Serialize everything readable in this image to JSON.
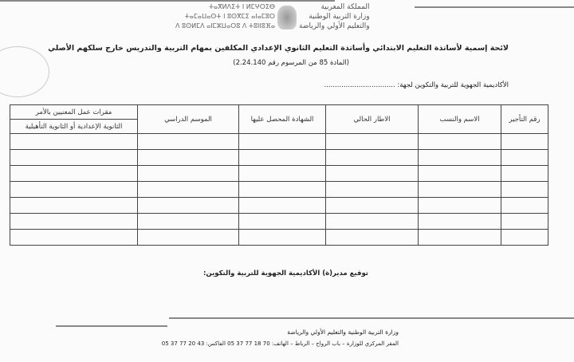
{
  "letterhead": {
    "kingdom_ar": "المملكة المغربية",
    "ministry_ar": "وزارة التربية الوطنية",
    "ministry_ar_2": "والتعليم الأولي والرياضة",
    "kingdom_tf": "ⵜⴰⴳⵍⴷⵉⵜ ⵏ ⵍⵎⵖⵔⵉⴱ",
    "ministry_tf": "ⵜⴰⵎⴰⵡⴰⵙⵜ ⵏ ⵓⵙⴳⵎⵉ ⴰⵏⴰⵎⵓⵔ",
    "ministry_tf_2": "ⴷ ⵓⵙⵍⵎⴷ ⴰⵏⵎⵣⵡⴰⵔⵓ ⴷ ⵜⵓⵏⵏⵓⴼⴰ"
  },
  "title": "لائحة إسمية لأساتذة التعليم الابتدائي وأساتذة التعليم الثانوي الإعدادي المكلفين بمهام التربية والتدريس خارج سلكهم الأصلي",
  "subtitle": "(المادة 85 من المرسوم رقم 2.24.140)",
  "academy_line": "الأكاديمية الجهوية للتربية والتكوين لجهة: .................................",
  "table": {
    "headers": [
      "رقم التأجير",
      "الاسم والنسب",
      "الاطار الحالي",
      "الشهادة المحصل عليها",
      "الموسم الدراسي"
    ],
    "last_header_top": "مقرات عمل المعنيين بالأمر",
    "last_header_bottom": "الثانوية الإعدادية أو الثانوية التأهيلية",
    "empty_rows": 7
  },
  "signature": "توقيع مدير(ة) الأكاديمية الجهوية للتربية والتكوين:",
  "footer": {
    "line1": "وزارة التربية الوطنية والتعليم الأولي والرياضة",
    "line2": "المقر المركزي للوزارة – باب الرواح – الرباط – الهاتف: 70 18 77 37 05 الفاكس: 43 20 77 37 05"
  }
}
